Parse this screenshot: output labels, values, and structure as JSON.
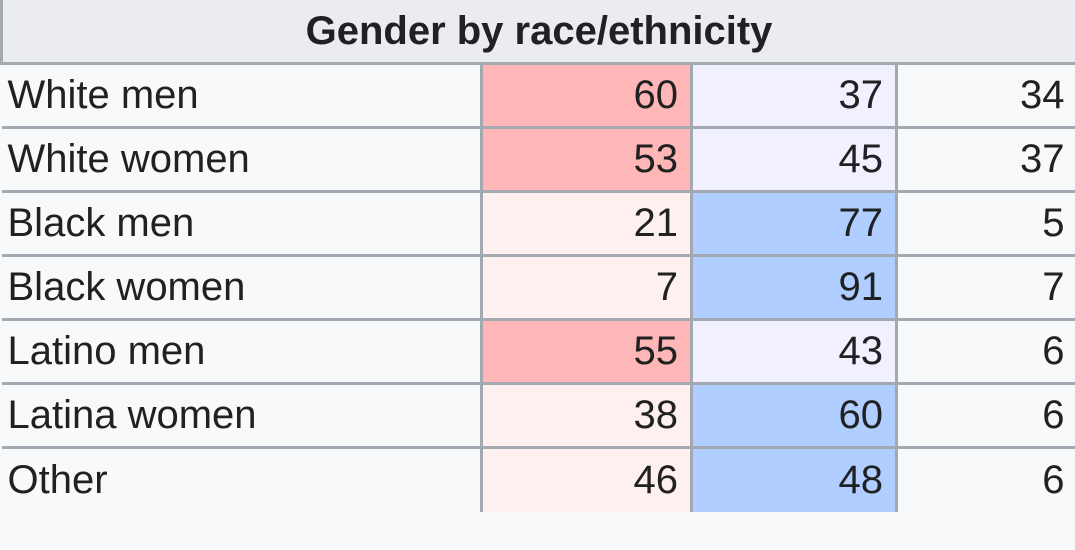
{
  "table": {
    "title": "Gender by race/ethnicity",
    "rows": [
      {
        "label": "White men",
        "values": [
          "60",
          "37",
          "34"
        ]
      },
      {
        "label": "White women",
        "values": [
          "53",
          "45",
          "37"
        ]
      },
      {
        "label": "Black men",
        "values": [
          "21",
          "77",
          "5"
        ]
      },
      {
        "label": "Black women",
        "values": [
          "7",
          "91",
          "7"
        ]
      },
      {
        "label": "Latino men",
        "values": [
          "55",
          "43",
          "6"
        ]
      },
      {
        "label": "Latina women",
        "values": [
          "38",
          "60",
          "6"
        ]
      },
      {
        "label": "Other",
        "values": [
          "46",
          "48",
          "6"
        ]
      }
    ]
  },
  "colors": {
    "red_strong": "#ffb6b6",
    "red_light": "#fff0f0",
    "blue_strong": "#b0ceff",
    "blue_light": "#f0f0ff",
    "neutral": "#f8f9fa"
  }
}
